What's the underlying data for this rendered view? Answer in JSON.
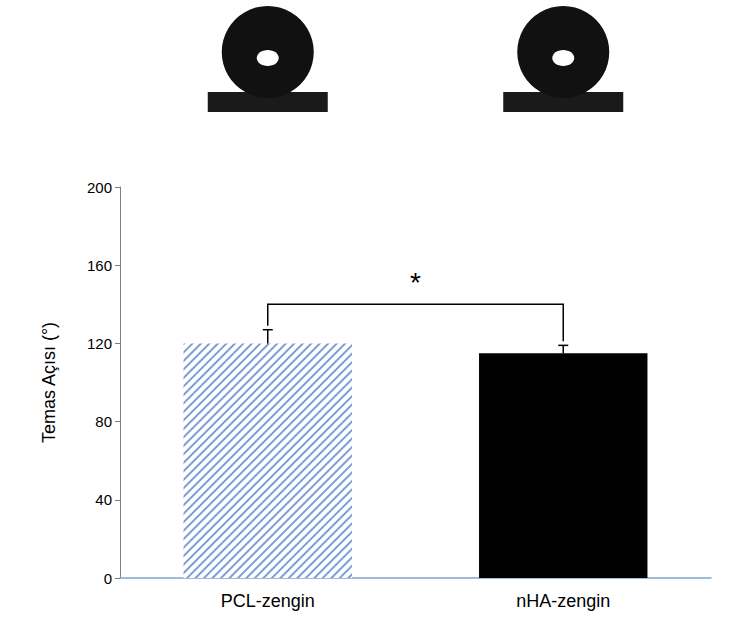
{
  "chart_data": {
    "type": "bar",
    "categories": [
      "PCL-zengin",
      "nHA-zengin"
    ],
    "values": [
      120,
      115
    ],
    "errors": [
      7,
      4
    ],
    "colors": [
      "#7b9fd4",
      "#000000"
    ],
    "ylabel": "Temas Açısı (°)",
    "ylim": [
      0,
      200
    ],
    "yticks": [
      0,
      40,
      80,
      120,
      160,
      200
    ],
    "grid": false,
    "annotations": [
      {
        "text": "*",
        "between": [
          "PCL-zengin",
          "nHA-zengin"
        ]
      }
    ]
  }
}
